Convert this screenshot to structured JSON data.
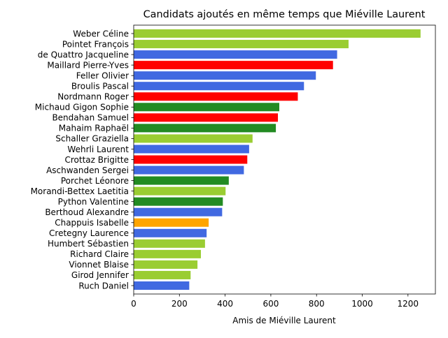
{
  "chart_data": {
    "type": "bar",
    "orientation": "horizontal",
    "title": "Candidats ajoutés en même temps que Miéville Laurent",
    "xlabel": "Amis de Miéville Laurent",
    "ylabel": "",
    "xlim": [
      0,
      1320
    ],
    "xticks": [
      0,
      200,
      400,
      600,
      800,
      1000,
      1200
    ],
    "grid": false,
    "categories": [
      "Weber Céline",
      "Pointet François",
      "de Quattro Jacqueline",
      "Maillard Pierre-Yves",
      "Feller Olivier",
      "Broulis Pascal",
      "Nordmann Roger",
      "Michaud Gigon Sophie",
      "Bendahan Samuel",
      "Mahaim Raphaël",
      "Schaller Graziella",
      "Wehrli Laurent",
      "Crottaz Brigitte",
      "Aschwanden Sergei",
      "Porchet Léonore",
      "Morandi-Bettex Laetitia",
      "Python Valentine",
      "Berthoud Alexandre",
      "Chappuis Isabelle",
      "Cretegny Laurence",
      "Humbert Sébastien",
      "Richard Claire",
      "Vionnet Blaise",
      "Girod Jennifer",
      "Ruch Daniel"
    ],
    "values": [
      1255,
      940,
      890,
      872,
      797,
      745,
      718,
      637,
      631,
      622,
      520,
      505,
      497,
      482,
      416,
      402,
      390,
      387,
      328,
      319,
      312,
      294,
      279,
      249,
      243
    ],
    "colors": [
      "#9acd32",
      "#9acd32",
      "#4169e1",
      "#ff0000",
      "#4169e1",
      "#4169e1",
      "#ff0000",
      "#228b22",
      "#ff0000",
      "#228b22",
      "#9acd32",
      "#4169e1",
      "#ff0000",
      "#4169e1",
      "#228b22",
      "#9acd32",
      "#228b22",
      "#4169e1",
      "#ffa500",
      "#4169e1",
      "#9acd32",
      "#9acd32",
      "#9acd32",
      "#9acd32",
      "#4169e1"
    ]
  }
}
